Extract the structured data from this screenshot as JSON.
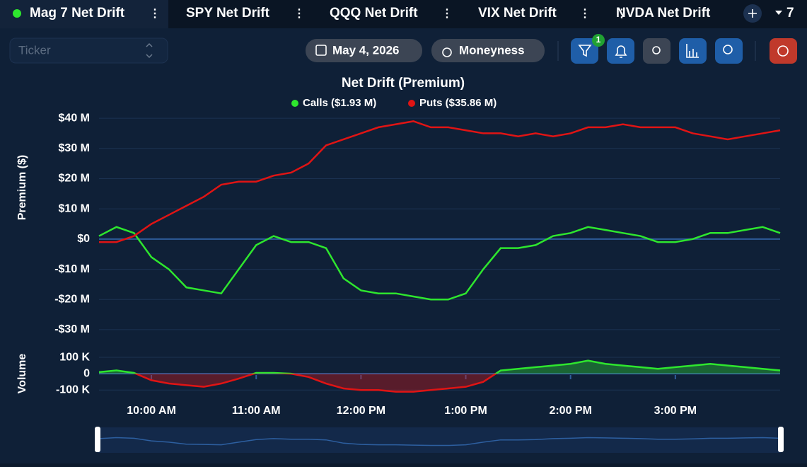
{
  "tabs": {
    "items": [
      "Mag 7 Net Drift",
      "SPY Net Drift",
      "QQQ Net Drift",
      "VIX Net Drift",
      "NVDA Net Drift"
    ],
    "count": "7"
  },
  "toolbar": {
    "ticker_placeholder": "Ticker",
    "date": "May 4, 2026",
    "moneyness": "Moneyness",
    "filter_badge": "1"
  },
  "chart_data": [
    {
      "type": "line",
      "title": "Net Drift (Premium)",
      "y_label": "Premium ($)",
      "x": [
        "9:30 AM",
        "9:40 AM",
        "9:50 AM",
        "10:00 AM",
        "10:10 AM",
        "10:20 AM",
        "10:30 AM",
        "10:40 AM",
        "10:50 AM",
        "11:00 AM",
        "11:10 AM",
        "11:20 AM",
        "11:30 AM",
        "11:40 AM",
        "11:50 AM",
        "12:00 PM",
        "12:10 PM",
        "12:20 PM",
        "12:30 PM",
        "12:40 PM",
        "12:50 PM",
        "1:00 PM",
        "1:10 PM",
        "1:20 PM",
        "1:30 PM",
        "1:40 PM",
        "1:50 PM",
        "2:00 PM",
        "2:10 PM",
        "2:20 PM",
        "2:30 PM",
        "2:40 PM",
        "2:50 PM",
        "3:00 PM",
        "3:10 PM",
        "3:20 PM",
        "3:30 PM",
        "3:40 PM",
        "3:50 PM",
        "4:00 PM"
      ],
      "series": [
        {
          "name": "Calls ($1.93 M)",
          "color": "#2ee62e",
          "values": [
            1,
            4,
            2,
            -6,
            -10,
            -16,
            -17,
            -18,
            -10,
            -2,
            1,
            -1,
            -1,
            -3,
            -13,
            -17,
            -18,
            -18,
            -19,
            -20,
            -20,
            -18,
            -10,
            -3,
            -3,
            -2,
            1,
            2,
            4,
            3,
            2,
            1,
            -1,
            -1,
            0,
            2,
            2,
            3,
            4,
            2
          ]
        },
        {
          "name": "Puts ($35.86 M)",
          "color": "#e01414",
          "values": [
            -1,
            -1,
            1,
            5,
            8,
            11,
            14,
            18,
            19,
            19,
            21,
            22,
            25,
            31,
            33,
            35,
            37,
            38,
            39,
            37,
            37,
            36,
            35,
            35,
            34,
            35,
            34,
            35,
            37,
            37,
            38,
            37,
            37,
            37,
            35,
            34,
            33,
            34,
            35,
            36
          ]
        }
      ],
      "ylim": [
        -34,
        44
      ],
      "yticks": [
        {
          "value": 40,
          "label": "$40 M"
        },
        {
          "value": 30,
          "label": "$30 M"
        },
        {
          "value": 20,
          "label": "$20 M"
        },
        {
          "value": 10,
          "label": "$10 M"
        },
        {
          "value": 0,
          "label": "$0"
        },
        {
          "value": -10,
          "label": "-$10 M"
        },
        {
          "value": -20,
          "label": "-$20 M"
        },
        {
          "value": -30,
          "label": "-$30 M"
        }
      ],
      "grid": true
    },
    {
      "type": "area",
      "y_label": "Volume",
      "color_positive": "#2ee62e",
      "color_negative": "#e01414",
      "x": [
        "9:30 AM",
        "9:40 AM",
        "9:50 AM",
        "10:00 AM",
        "10:10 AM",
        "10:20 AM",
        "10:30 AM",
        "10:40 AM",
        "10:50 AM",
        "11:00 AM",
        "11:10 AM",
        "11:20 AM",
        "11:30 AM",
        "11:40 AM",
        "11:50 AM",
        "12:00 PM",
        "12:10 PM",
        "12:20 PM",
        "12:30 PM",
        "12:40 PM",
        "12:50 PM",
        "1:00 PM",
        "1:10 PM",
        "1:20 PM",
        "1:30 PM",
        "1:40 PM",
        "1:50 PM",
        "2:00 PM",
        "2:10 PM",
        "2:20 PM",
        "2:30 PM",
        "2:40 PM",
        "2:50 PM",
        "3:00 PM",
        "3:10 PM",
        "3:20 PM",
        "3:30 PM",
        "3:40 PM",
        "3:50 PM",
        "4:00 PM"
      ],
      "values": [
        10,
        20,
        5,
        -40,
        -60,
        -70,
        -80,
        -60,
        -30,
        5,
        5,
        0,
        -20,
        -60,
        -90,
        -100,
        -100,
        -110,
        -110,
        -100,
        -90,
        -80,
        -50,
        20,
        30,
        40,
        50,
        60,
        80,
        60,
        50,
        40,
        30,
        40,
        50,
        60,
        50,
        40,
        30,
        20
      ],
      "ylim": [
        -155,
        165
      ],
      "yticks": [
        {
          "value": 100,
          "label": "100 K"
        },
        0,
        {
          "value": -100,
          "label": "-100 K"
        }
      ],
      "xticks": [
        "10:00 AM",
        "11:00 AM",
        "12:00 PM",
        "1:00 PM",
        "2:00 PM",
        "3:00 PM"
      ],
      "grid": true
    }
  ]
}
